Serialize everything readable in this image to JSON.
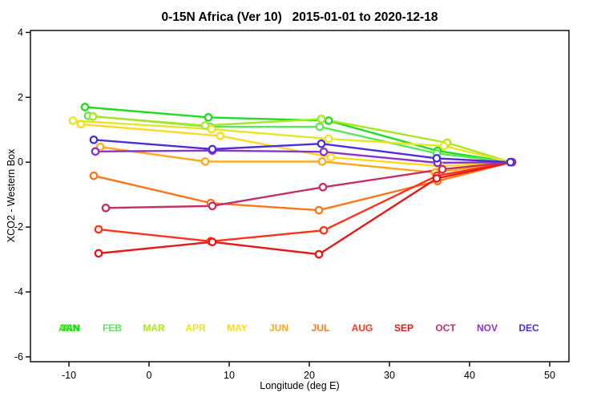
{
  "chart_data": {
    "type": "line",
    "title": "0-15N Africa (Ver 10)   2015-01-01 to 2020-12-18",
    "xlabel": "Longitude (deg E)",
    "ylabel": "XCO2 - Western Box",
    "xlim": [
      -14.8,
      52.4
    ],
    "ylim": [
      -6.15,
      4.06
    ],
    "xticks": [
      -10,
      0,
      10,
      20,
      30,
      40,
      50
    ],
    "yticks": [
      4,
      2,
      0,
      -2,
      -4,
      -6
    ],
    "grid": false,
    "marker": "open-circle",
    "legend_position": "bottom-inside",
    "series": [
      {
        "name": "JAN",
        "color": "#1FDD1F",
        "points": [
          [
            -8.0,
            1.7
          ],
          [
            7.4,
            1.38
          ],
          [
            22.4,
            1.28
          ],
          [
            36.0,
            0.35
          ],
          [
            45.1,
            0.0
          ]
        ]
      },
      {
        "name": "FEB",
        "color": "#5CE65C",
        "points": [
          [
            -7.6,
            1.43
          ],
          [
            7.6,
            1.09
          ],
          [
            21.3,
            1.09
          ],
          [
            35.9,
            0.27
          ],
          [
            45.1,
            0.0
          ]
        ]
      },
      {
        "name": "MAR",
        "color": "#AAE622",
        "points": [
          [
            -7.0,
            1.41
          ],
          [
            7.0,
            1.13
          ],
          [
            21.5,
            1.33
          ],
          [
            37.2,
            0.6
          ],
          [
            45.1,
            0.0
          ]
        ]
      },
      {
        "name": "APR",
        "color": "#E6E622",
        "points": [
          [
            -9.5,
            1.28
          ],
          [
            7.8,
            1.02
          ],
          [
            22.4,
            0.72
          ],
          [
            36.8,
            0.5
          ],
          [
            45.15,
            0.0
          ]
        ]
      },
      {
        "name": "MAY",
        "color": "#FFD91F",
        "points": [
          [
            -8.5,
            1.17
          ],
          [
            8.9,
            0.81
          ],
          [
            22.7,
            0.15
          ],
          [
            36.3,
            -0.12
          ],
          [
            45.15,
            0.0
          ]
        ]
      },
      {
        "name": "JUN",
        "color": "#FFA81F",
        "points": [
          [
            -6.1,
            0.47
          ],
          [
            7.0,
            0.02
          ],
          [
            21.6,
            0.02
          ],
          [
            35.7,
            -0.32
          ],
          [
            45.2,
            0.0
          ]
        ]
      },
      {
        "name": "JUL",
        "color": "#FF7519",
        "points": [
          [
            -6.9,
            -0.42
          ],
          [
            7.7,
            -1.26
          ],
          [
            21.2,
            -1.48
          ],
          [
            36.0,
            -0.58
          ],
          [
            45.2,
            0.0
          ]
        ]
      },
      {
        "name": "AUG",
        "color": "#FF3319",
        "points": [
          [
            -6.3,
            -2.07
          ],
          [
            7.7,
            -2.44
          ],
          [
            21.8,
            -2.1
          ],
          [
            35.9,
            -0.42
          ],
          [
            45.3,
            0.0
          ]
        ]
      },
      {
        "name": "SEP",
        "color": "#E61919",
        "points": [
          [
            -6.3,
            -2.81
          ],
          [
            7.9,
            -2.46
          ],
          [
            21.2,
            -2.84
          ],
          [
            35.9,
            -0.5
          ],
          [
            45.3,
            0.0
          ]
        ]
      },
      {
        "name": "OCT",
        "color": "#C62E66",
        "points": [
          [
            -5.4,
            -1.41
          ],
          [
            7.9,
            -1.35
          ],
          [
            21.7,
            -0.77
          ],
          [
            36.6,
            -0.22
          ],
          [
            45.25,
            0.0
          ]
        ]
      },
      {
        "name": "NOV",
        "color": "#8C33CC",
        "points": [
          [
            -6.7,
            0.33
          ],
          [
            7.9,
            0.36
          ],
          [
            21.8,
            0.32
          ],
          [
            36.0,
            -0.02
          ],
          [
            45.15,
            0.0
          ]
        ]
      },
      {
        "name": "DEC",
        "color": "#4D2EDD",
        "points": [
          [
            -6.9,
            0.69
          ],
          [
            7.9,
            0.4
          ],
          [
            21.5,
            0.57
          ],
          [
            35.9,
            0.12
          ],
          [
            45.1,
            0.0
          ]
        ]
      }
    ],
    "month_labels": {
      "ann": {
        "label": "ANN",
        "color": "#2EE600"
      },
      "items": [
        {
          "label": "JAN",
          "color": "#1FDD1F"
        },
        {
          "label": "FEB",
          "color": "#5CE65C"
        },
        {
          "label": "MAR",
          "color": "#AAE622"
        },
        {
          "label": "APR",
          "color": "#E6E622"
        },
        {
          "label": "MAY",
          "color": "#FFD91F"
        },
        {
          "label": "JUN",
          "color": "#FFA81F"
        },
        {
          "label": "JUL",
          "color": "#FF7519"
        },
        {
          "label": "AUG",
          "color": "#FF3319"
        },
        {
          "label": "SEP",
          "color": "#E61919"
        },
        {
          "label": "OCT",
          "color": "#C62E66"
        },
        {
          "label": "NOV",
          "color": "#8C33CC"
        },
        {
          "label": "DEC",
          "color": "#4D2EDD"
        }
      ]
    },
    "axis_color": "#000000",
    "background_color": "#ffffff"
  }
}
